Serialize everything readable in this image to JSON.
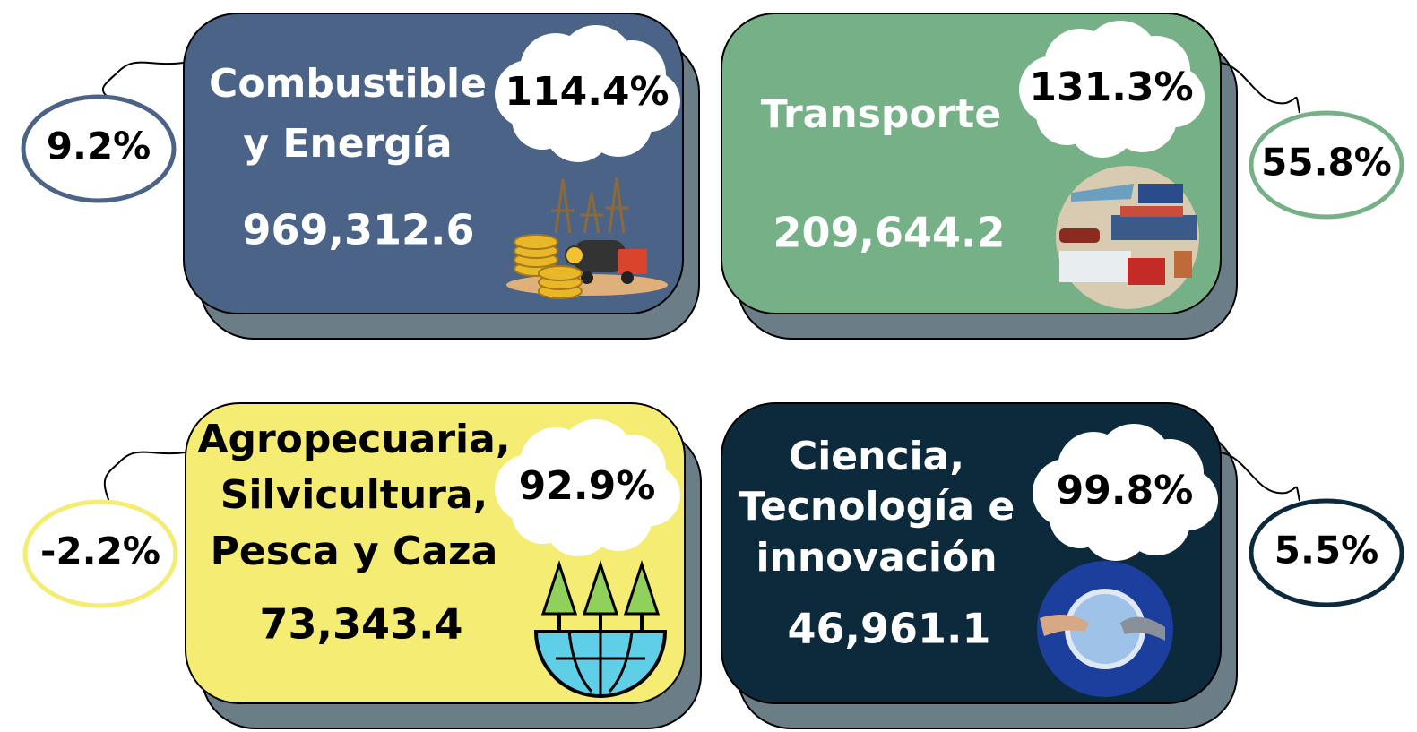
{
  "cards": [
    {
      "title_lines": [
        "Combustible",
        "y Energía"
      ],
      "value": "969,312.6",
      "cloud_percent": "114.4%",
      "oval_percent": "9.2%",
      "color": "#4b6387",
      "text_color": "#ffffff"
    },
    {
      "title_lines": [
        "Transporte"
      ],
      "value": "209,644.2",
      "cloud_percent": "131.3%",
      "oval_percent": "55.8%",
      "color": "#76b087",
      "text_color": "#ffffff"
    },
    {
      "title_lines": [
        "Agropecuaria,",
        "Silvicultura,",
        "Pesca y Caza"
      ],
      "value": "73,343.4",
      "cloud_percent": "92.9%",
      "oval_percent": "-2.2%",
      "color": "#f5ec73",
      "text_color": "#000000"
    },
    {
      "title_lines": [
        "Ciencia,",
        "Tecnología e",
        "innovación"
      ],
      "value": "46,961.1",
      "cloud_percent": "99.8%",
      "oval_percent": "5.5%",
      "color": "#0d2a3c",
      "text_color": "#ffffff"
    }
  ]
}
